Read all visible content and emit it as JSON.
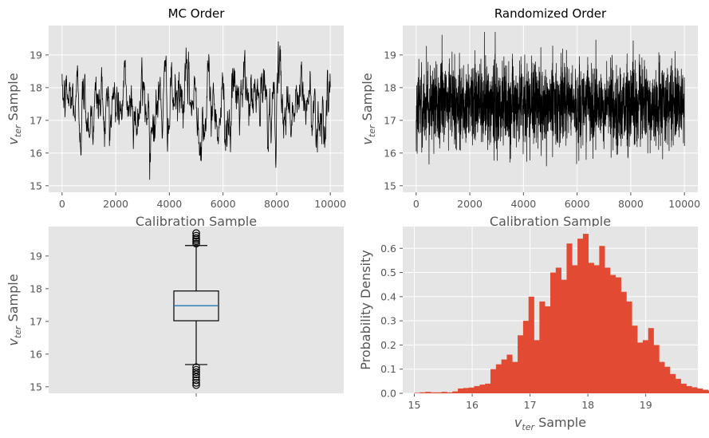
{
  "colors": {
    "axes_bg": "#e5e5e5",
    "grid": "#ffffff",
    "trace": "#000000",
    "hist": "#e24a33",
    "median": "#1f77b4",
    "tick_text": "#555555"
  },
  "chart_data": [
    {
      "id": "mc-order",
      "type": "line",
      "title": "MC Order",
      "xlabel": "Calibration Sample",
      "ylabel_main": "v",
      "ylabel_sub": "ter",
      "ylabel_rest": " Sample",
      "xlim": [
        -500,
        10500
      ],
      "ylim": [
        14.8,
        19.9
      ],
      "xticks": [
        0,
        2000,
        4000,
        6000,
        8000,
        10000
      ],
      "xtick_labels": [
        "0",
        "2000",
        "4000",
        "6000",
        "8000",
        "10000"
      ],
      "yticks": [
        15,
        16,
        17,
        18,
        19
      ],
      "ytick_labels": [
        "15",
        "16",
        "17",
        "18",
        "19"
      ],
      "n_samples": 10000,
      "mean": 17.5,
      "sd": 0.65,
      "min": 15.0,
      "max": 19.7,
      "autocorrelated": true,
      "grid": true
    },
    {
      "id": "randomized-order",
      "type": "line",
      "title": "Randomized Order",
      "xlabel": "Calibration Sample",
      "ylabel_main": "v",
      "ylabel_sub": "ter",
      "ylabel_rest": " Sample",
      "xlim": [
        -500,
        10500
      ],
      "ylim": [
        14.8,
        19.9
      ],
      "xticks": [
        0,
        2000,
        4000,
        6000,
        8000,
        10000
      ],
      "xtick_labels": [
        "0",
        "2000",
        "4000",
        "6000",
        "8000",
        "10000"
      ],
      "yticks": [
        15,
        16,
        17,
        18,
        19
      ],
      "ytick_labels": [
        "15",
        "16",
        "17",
        "18",
        "19"
      ],
      "n_samples": 10000,
      "mean": 17.5,
      "sd": 0.65,
      "min": 15.0,
      "max": 19.7,
      "autocorrelated": false,
      "grid": true
    },
    {
      "id": "boxplot",
      "type": "box",
      "ylabel_main": "v",
      "ylabel_sub": "ter",
      "ylabel_rest": " Sample",
      "ylim": [
        14.8,
        19.9
      ],
      "yticks": [
        15,
        16,
        17,
        18,
        19
      ],
      "ytick_labels": [
        "15",
        "16",
        "17",
        "18",
        "19"
      ],
      "box": {
        "q1": 17.02,
        "median": 17.48,
        "q3": 17.93,
        "whisker_low": 15.68,
        "whisker_high": 19.32,
        "outliers_low": [
          15.05,
          15.12,
          15.2,
          15.3,
          15.38,
          15.45,
          15.52,
          15.6
        ],
        "outliers_high": [
          19.38,
          19.45,
          19.5,
          19.55,
          19.62,
          19.7
        ]
      },
      "grid": false
    },
    {
      "id": "histogram",
      "type": "bar",
      "xlabel_main": "v",
      "xlabel_sub": "ter",
      "xlabel_rest": " Sample",
      "ylabel": "Probability Density",
      "xlim": [
        14.8,
        19.9
      ],
      "ylim": [
        0.0,
        0.69
      ],
      "xticks": [
        15,
        16,
        17,
        18,
        19
      ],
      "xtick_labels": [
        "15",
        "16",
        "17",
        "18",
        "19"
      ],
      "yticks": [
        0.0,
        0.1,
        0.2,
        0.3,
        0.4,
        0.5,
        0.6
      ],
      "ytick_labels": [
        "0.0",
        "0.1",
        "0.2",
        "0.3",
        "0.4",
        "0.5",
        "0.6"
      ],
      "bin_start": 15.0,
      "bin_width": 0.094,
      "values": [
        0.002,
        0.004,
        0.006,
        0.004,
        0.004,
        0.006,
        0.004,
        0.008,
        0.02,
        0.022,
        0.024,
        0.03,
        0.036,
        0.04,
        0.1,
        0.12,
        0.14,
        0.16,
        0.13,
        0.24,
        0.3,
        0.4,
        0.22,
        0.38,
        0.36,
        0.5,
        0.52,
        0.47,
        0.62,
        0.53,
        0.64,
        0.66,
        0.54,
        0.53,
        0.61,
        0.52,
        0.49,
        0.48,
        0.42,
        0.38,
        0.28,
        0.21,
        0.22,
        0.27,
        0.2,
        0.13,
        0.11,
        0.08,
        0.06,
        0.04,
        0.03,
        0.025,
        0.02,
        0.015,
        0.012,
        0.008
      ],
      "grid": true
    }
  ]
}
